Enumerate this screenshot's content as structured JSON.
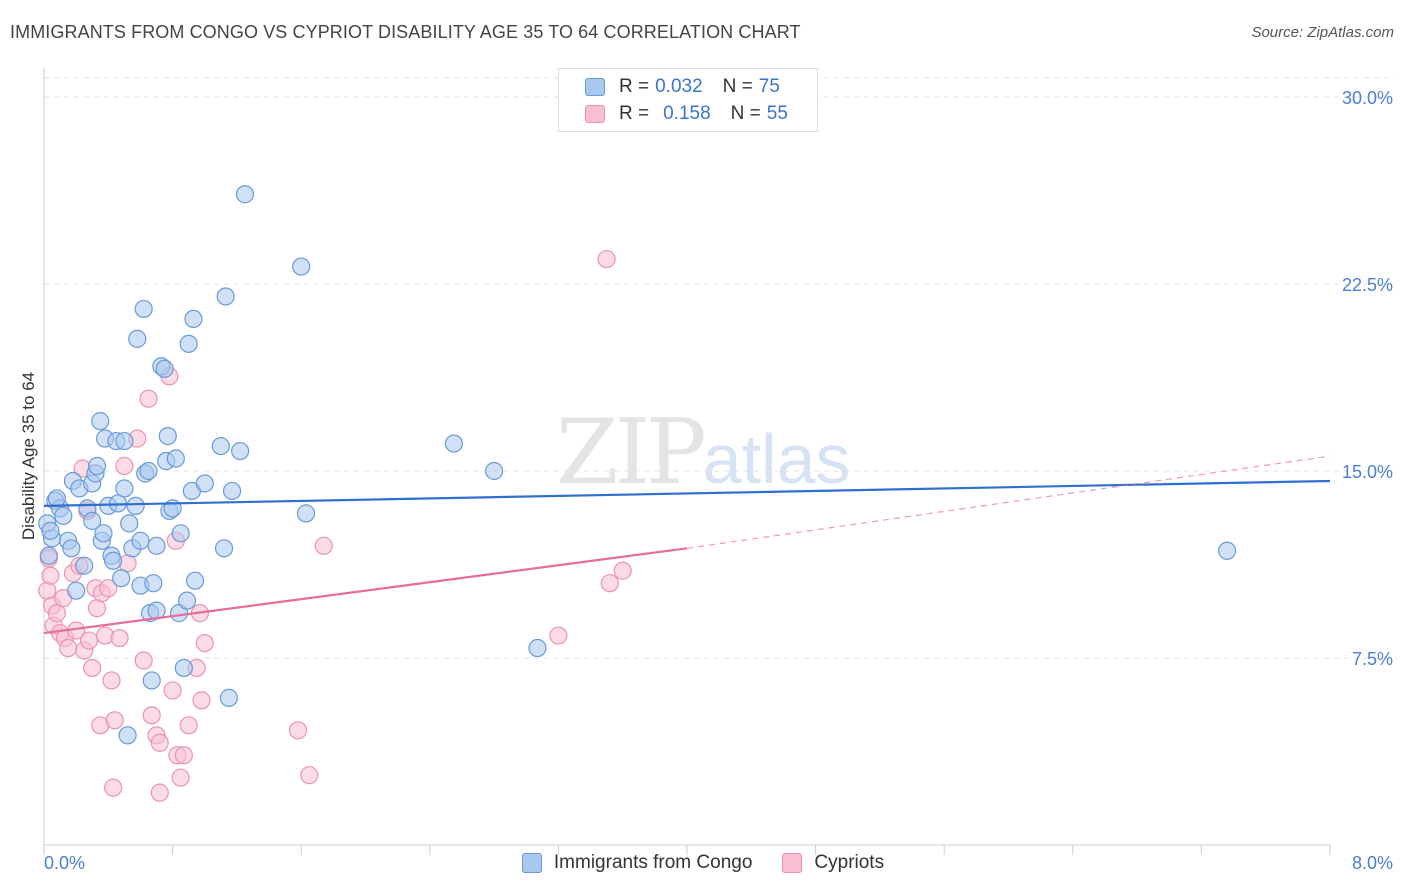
{
  "header": {
    "title": "IMMIGRANTS FROM CONGO VS CYPRIOT DISABILITY AGE 35 TO 64 CORRELATION CHART",
    "source": "Source: ZipAtlas.com"
  },
  "watermark": {
    "zip": "ZIP",
    "atlas": "atlas"
  },
  "legend_top": {
    "rows": [
      {
        "r_label": "R =",
        "r_value": "0.032",
        "n_label": "N =",
        "n_value": "75"
      },
      {
        "r_label": "R =",
        "r_value": "0.158",
        "n_label": "N =",
        "n_value": "55"
      }
    ]
  },
  "legend_bottom": {
    "items": [
      "Immigrants from Congo",
      "Cypriots"
    ]
  },
  "colors": {
    "blue_fill": "#a9c8ef",
    "blue_stroke": "#6a9ad8",
    "blue_line": "#2f6fcf",
    "pink_fill": "#f7bfd1",
    "pink_stroke": "#ec93b2",
    "pink_line": "#e66d9c",
    "tick": "#4a7fd4",
    "grid": "#e3e3e3"
  },
  "chart_data": {
    "type": "scatter",
    "title": "IMMIGRANTS FROM CONGO VS CYPRIOT DISABILITY AGE 35 TO 64 CORRELATION CHART",
    "xlabel": "",
    "ylabel": "Disability Age 35 to 64",
    "xlim": [
      0,
      8
    ],
    "ylim": [
      0,
      30
    ],
    "x_tick_labels": [
      "0.0%",
      "8.0%"
    ],
    "y_ticks": [
      7.5,
      15,
      22.5,
      30
    ],
    "y_tick_labels": [
      "7.5%",
      "15.0%",
      "22.5%",
      "30.0%"
    ],
    "grid": true,
    "series": [
      {
        "name": "Immigrants from Congo",
        "color": "blue",
        "R": 0.032,
        "N": 75,
        "trend": {
          "x": [
            0,
            8
          ],
          "y": [
            13.6,
            14.6
          ]
        },
        "points": [
          [
            0.02,
            12.9
          ],
          [
            0.03,
            11.6
          ],
          [
            0.05,
            12.3
          ],
          [
            0.07,
            13.8
          ],
          [
            0.1,
            13.5
          ],
          [
            0.12,
            13.2
          ],
          [
            0.15,
            12.2
          ],
          [
            0.17,
            11.9
          ],
          [
            0.18,
            14.6
          ],
          [
            0.2,
            10.2
          ],
          [
            0.22,
            14.3
          ],
          [
            0.25,
            11.2
          ],
          [
            0.27,
            13.5
          ],
          [
            0.3,
            14.5
          ],
          [
            0.3,
            13.0
          ],
          [
            0.32,
            14.9
          ],
          [
            0.33,
            15.2
          ],
          [
            0.35,
            17.0
          ],
          [
            0.36,
            12.2
          ],
          [
            0.37,
            12.5
          ],
          [
            0.38,
            16.3
          ],
          [
            0.4,
            13.6
          ],
          [
            0.42,
            11.6
          ],
          [
            0.43,
            11.4
          ],
          [
            0.45,
            16.2
          ],
          [
            0.46,
            13.7
          ],
          [
            0.48,
            10.7
          ],
          [
            0.5,
            16.2
          ],
          [
            0.5,
            14.3
          ],
          [
            0.52,
            4.4
          ],
          [
            0.53,
            12.9
          ],
          [
            0.55,
            11.9
          ],
          [
            0.57,
            13.6
          ],
          [
            0.58,
            20.3
          ],
          [
            0.6,
            10.4
          ],
          [
            0.6,
            12.2
          ],
          [
            0.62,
            21.5
          ],
          [
            0.63,
            14.9
          ],
          [
            0.65,
            15.0
          ],
          [
            0.66,
            9.3
          ],
          [
            0.67,
            6.6
          ],
          [
            0.68,
            10.5
          ],
          [
            0.7,
            9.4
          ],
          [
            0.7,
            12.0
          ],
          [
            0.73,
            19.2
          ],
          [
            0.75,
            19.1
          ],
          [
            0.76,
            15.4
          ],
          [
            0.77,
            16.4
          ],
          [
            0.78,
            13.4
          ],
          [
            0.8,
            13.5
          ],
          [
            0.82,
            15.5
          ],
          [
            0.84,
            9.3
          ],
          [
            0.85,
            12.5
          ],
          [
            0.87,
            7.1
          ],
          [
            0.89,
            9.8
          ],
          [
            0.9,
            20.1
          ],
          [
            0.92,
            14.2
          ],
          [
            0.93,
            21.1
          ],
          [
            0.94,
            10.6
          ],
          [
            1.0,
            14.5
          ],
          [
            1.1,
            16.0
          ],
          [
            1.12,
            11.9
          ],
          [
            1.13,
            22.0
          ],
          [
            1.15,
            5.9
          ],
          [
            1.17,
            14.2
          ],
          [
            1.22,
            15.8
          ],
          [
            1.25,
            26.1
          ],
          [
            1.6,
            23.2
          ],
          [
            1.63,
            13.3
          ],
          [
            2.55,
            16.1
          ],
          [
            2.8,
            15.0
          ],
          [
            3.07,
            7.9
          ],
          [
            7.36,
            11.8
          ],
          [
            0.04,
            12.6
          ],
          [
            0.08,
            13.9
          ]
        ]
      },
      {
        "name": "Cypriots",
        "color": "pink",
        "R": 0.158,
        "N": 55,
        "trend": {
          "x": [
            0,
            4.0
          ],
          "y": [
            8.5,
            11.9
          ]
        },
        "trend_dashed": {
          "x": [
            4.0,
            8
          ],
          "y": [
            11.9,
            15.6
          ]
        },
        "points": [
          [
            0.02,
            10.2
          ],
          [
            0.03,
            11.5
          ],
          [
            0.05,
            9.6
          ],
          [
            0.06,
            8.8
          ],
          [
            0.08,
            9.3
          ],
          [
            0.1,
            8.5
          ],
          [
            0.12,
            9.9
          ],
          [
            0.13,
            8.3
          ],
          [
            0.15,
            7.9
          ],
          [
            0.18,
            10.9
          ],
          [
            0.2,
            8.6
          ],
          [
            0.22,
            11.2
          ],
          [
            0.24,
            15.1
          ],
          [
            0.25,
            7.8
          ],
          [
            0.27,
            13.4
          ],
          [
            0.28,
            8.2
          ],
          [
            0.3,
            7.1
          ],
          [
            0.32,
            10.3
          ],
          [
            0.33,
            9.5
          ],
          [
            0.35,
            4.8
          ],
          [
            0.36,
            10.1
          ],
          [
            0.38,
            8.4
          ],
          [
            0.4,
            10.3
          ],
          [
            0.42,
            6.6
          ],
          [
            0.43,
            2.3
          ],
          [
            0.44,
            5.0
          ],
          [
            0.47,
            8.3
          ],
          [
            0.5,
            15.2
          ],
          [
            0.52,
            11.3
          ],
          [
            0.58,
            16.3
          ],
          [
            0.62,
            7.4
          ],
          [
            0.65,
            17.9
          ],
          [
            0.67,
            5.2
          ],
          [
            0.7,
            4.4
          ],
          [
            0.72,
            4.1
          ],
          [
            0.72,
            2.1
          ],
          [
            0.78,
            18.8
          ],
          [
            0.8,
            6.2
          ],
          [
            0.82,
            12.2
          ],
          [
            0.83,
            3.6
          ],
          [
            0.85,
            2.7
          ],
          [
            0.87,
            3.6
          ],
          [
            0.9,
            4.8
          ],
          [
            0.95,
            7.1
          ],
          [
            0.97,
            9.3
          ],
          [
            0.98,
            5.8
          ],
          [
            1.0,
            8.1
          ],
          [
            1.58,
            4.6
          ],
          [
            1.65,
            2.8
          ],
          [
            1.74,
            12.0
          ],
          [
            3.2,
            8.4
          ],
          [
            3.5,
            23.5
          ],
          [
            3.52,
            10.5
          ],
          [
            3.6,
            11.0
          ],
          [
            0.04,
            10.8
          ]
        ]
      }
    ]
  }
}
